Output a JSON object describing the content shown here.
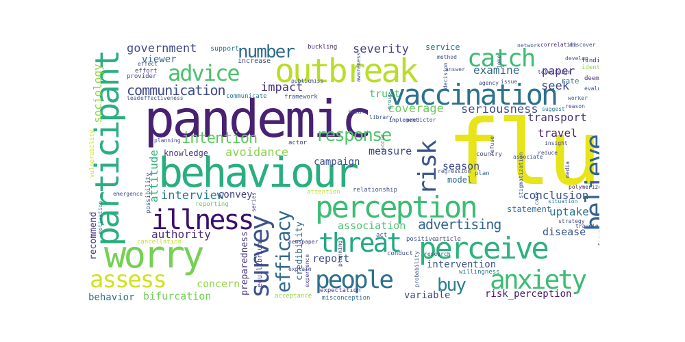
{
  "cloud": {
    "words": [
      {
        "text": "flu",
        "color": "#e7e419"
      },
      {
        "text": "pandemic",
        "color": "#482173"
      },
      {
        "text": "behaviour",
        "color": "#29af7f"
      },
      {
        "text": "outbreak",
        "color": "#b8de29"
      },
      {
        "text": "vaccination",
        "color": "#2c728e"
      },
      {
        "text": "perception",
        "color": "#3dbc74"
      },
      {
        "text": "worry",
        "color": "#75d054"
      },
      {
        "text": "participant",
        "color": "#29af7f"
      },
      {
        "text": "perceive",
        "color": "#2db27d"
      },
      {
        "text": "illness",
        "color": "#3b0f70"
      },
      {
        "text": "advice",
        "color": "#4ac16d"
      },
      {
        "text": "catch",
        "color": "#3dbc74"
      },
      {
        "text": "survey",
        "color": "#3b528b"
      },
      {
        "text": "threat",
        "color": "#22a884"
      },
      {
        "text": "anxiety",
        "color": "#3dbc74"
      },
      {
        "text": "people",
        "color": "#2c728e"
      },
      {
        "text": "believe",
        "color": "#33638d"
      },
      {
        "text": "assess",
        "color": "#d2e21b"
      },
      {
        "text": "risk",
        "color": "#39568c"
      },
      {
        "text": "efficacy",
        "color": "#31688e"
      },
      {
        "text": "response",
        "color": "#52c569"
      },
      {
        "text": "number",
        "color": "#2f6c8e"
      },
      {
        "text": "communication",
        "color": "#3e4989"
      },
      {
        "text": "intention",
        "color": "#60ca60"
      },
      {
        "text": "government",
        "color": "#3e4a89"
      },
      {
        "text": "buy",
        "color": "#287d8e"
      },
      {
        "text": "severity",
        "color": "#424086"
      },
      {
        "text": "impact",
        "color": "#463480"
      },
      {
        "text": "advertising",
        "color": "#32658e"
      },
      {
        "text": "authority",
        "color": "#482878"
      },
      {
        "text": "seriousness",
        "color": "#3e4a89"
      },
      {
        "text": "coverage",
        "color": "#6ccd5a"
      },
      {
        "text": "avoidance",
        "color": "#86d549"
      },
      {
        "text": "interview",
        "color": "#2a788e"
      },
      {
        "text": "conclusion",
        "color": "#3b528b"
      },
      {
        "text": "attitude",
        "color": "#2db27d"
      },
      {
        "text": "sociology",
        "color": "#93d741"
      },
      {
        "text": "paper",
        "color": "#472d7b"
      },
      {
        "text": "examine",
        "color": "#31688e"
      },
      {
        "text": "seek",
        "color": "#3f4788"
      },
      {
        "text": "transport",
        "color": "#46337f"
      },
      {
        "text": "travel",
        "color": "#481f71"
      },
      {
        "text": "uptake",
        "color": "#2d718e"
      },
      {
        "text": "association",
        "color": "#4ac16d"
      },
      {
        "text": "report",
        "color": "#3b528b"
      },
      {
        "text": "intervention",
        "color": "#3b528b"
      },
      {
        "text": "concern",
        "color": "#8fd744"
      },
      {
        "text": "behavior",
        "color": "#2e6f8e"
      },
      {
        "text": "bifurcation",
        "color": "#73d056"
      },
      {
        "text": "risk_perception",
        "color": "#48186a"
      },
      {
        "text": "variable",
        "color": "#3f4788"
      },
      {
        "text": "disease",
        "color": "#39568c"
      },
      {
        "text": "recommend",
        "color": "#46337f"
      },
      {
        "text": "preparedness",
        "color": "#46337f"
      },
      {
        "text": "knowledge",
        "color": "#453882"
      },
      {
        "text": "convey",
        "color": "#433e85"
      },
      {
        "text": "season",
        "color": "#3e4989"
      },
      {
        "text": "statement",
        "color": "#2e6e8e"
      },
      {
        "text": "measure",
        "color": "#3f4788"
      },
      {
        "text": "campaign",
        "color": "#3b528b"
      },
      {
        "text": "trust",
        "color": "#4ac16d"
      },
      {
        "text": "credibility",
        "color": "#31688e"
      },
      {
        "text": "viewer",
        "color": "#31688e"
      },
      {
        "text": "model",
        "color": "#2d708e"
      },
      {
        "text": "service",
        "color": "#2a788e"
      },
      {
        "text": "support",
        "color": "#2a788e"
      },
      {
        "text": "increase",
        "color": "#3e4989"
      },
      {
        "text": "buckling",
        "color": "#482878"
      },
      {
        "text": "communicate",
        "color": "#2a788e"
      },
      {
        "text": "framework",
        "color": "#3b528b"
      },
      {
        "text": "effort",
        "color": "#46337f"
      },
      {
        "text": "provider",
        "color": "#3f4788"
      },
      {
        "text": "rate",
        "color": "#2a788e"
      },
      {
        "text": "deem",
        "color": "#472d7b"
      },
      {
        "text": "finding",
        "color": "#482878"
      },
      {
        "text": "identify",
        "color": "#8fd744"
      },
      {
        "text": "country",
        "color": "#3e4989"
      },
      {
        "text": "plan",
        "color": "#31688e"
      },
      {
        "text": "relationship",
        "color": "#3b528b"
      },
      {
        "text": "actor",
        "color": "#453882"
      },
      {
        "text": "reporting",
        "color": "#6ccd5a"
      },
      {
        "text": "cancellation",
        "color": "#c2df23"
      },
      {
        "text": "equilibrium",
        "color": "#453882"
      },
      {
        "text": "possibility",
        "color": "#3b528b"
      },
      {
        "text": "acceptance",
        "color": "#8fd744"
      },
      {
        "text": "expectation",
        "color": "#472d7b"
      },
      {
        "text": "misconception",
        "color": "#31688e"
      },
      {
        "text": "conduct",
        "color": "#3e4989"
      },
      {
        "text": "willingness",
        "color": "#2a788e"
      },
      {
        "text": "positive",
        "color": "#3b528b"
      },
      {
        "text": "article",
        "color": "#433e85"
      },
      {
        "text": "attention",
        "color": "#b8de29"
      },
      {
        "text": "act",
        "color": "#3e4989"
      },
      {
        "text": "vulnerability",
        "color": "#d2e21b"
      },
      {
        "text": "series",
        "color": "#453882"
      },
      {
        "text": "emergence",
        "color": "#3b528b"
      },
      {
        "text": "strategy",
        "color": "#3e4989"
      },
      {
        "text": "situation",
        "color": "#2a788e"
      },
      {
        "text": "media",
        "color": "#3e4989"
      },
      {
        "text": "lead",
        "color": "#3b528b"
      },
      {
        "text": "effectiveness",
        "color": "#3b528b"
      },
      {
        "text": "implement",
        "color": "#3e4989"
      },
      {
        "text": "refuse",
        "color": "#3b528b"
      },
      {
        "text": "polymerize",
        "color": "#482878"
      },
      {
        "text": "insight",
        "color": "#3e4989"
      },
      {
        "text": "traveler",
        "color": "#453882"
      },
      {
        "text": "focus",
        "color": "#3e4989"
      },
      {
        "text": "answer",
        "color": "#3b528b"
      },
      {
        "text": "agency",
        "color": "#3e4989"
      },
      {
        "text": "correlation",
        "color": "#482878"
      },
      {
        "text": "discover",
        "color": "#3b528b"
      },
      {
        "text": "suggest",
        "color": "#2a788e"
      },
      {
        "text": "television",
        "color": "#3b528b"
      },
      {
        "text": "explain",
        "color": "#3e4989"
      },
      {
        "text": "newspaper",
        "color": "#453882"
      },
      {
        "text": "research",
        "color": "#3b528b"
      },
      {
        "text": "group",
        "color": "#2a788e"
      },
      {
        "text": "library",
        "color": "#3b528b"
      },
      {
        "text": "speak",
        "color": "#3b528b"
      },
      {
        "text": "reduce",
        "color": "#3e4989"
      },
      {
        "text": "regression",
        "color": "#3b528b"
      },
      {
        "text": "stigmatization",
        "color": "#3b528b"
      },
      {
        "text": "motivation",
        "color": "#2a788e"
      },
      {
        "text": "experience",
        "color": "#453882"
      },
      {
        "text": "probability",
        "color": "#3b528b"
      },
      {
        "text": "planning",
        "color": "#3e4989"
      },
      {
        "text": "effect",
        "color": "#3b528b"
      },
      {
        "text": "method",
        "color": "#3e4989"
      },
      {
        "text": "develop",
        "color": "#3b528b"
      },
      {
        "text": "network",
        "color": "#3b528b"
      },
      {
        "text": "occur",
        "color": "#3b528b"
      },
      {
        "text": "awareness",
        "color": "#3b528b"
      },
      {
        "text": "decision",
        "color": "#3b528b"
      },
      {
        "text": "issue",
        "color": "#3b528b"
      },
      {
        "text": "miss",
        "color": "#3e4989"
      },
      {
        "text": "public",
        "color": "#3b528b"
      },
      {
        "text": "joke",
        "color": "#3b528b"
      },
      {
        "text": "evaluate",
        "color": "#3b528b"
      },
      {
        "text": "associate",
        "color": "#3b528b"
      },
      {
        "text": "care",
        "color": "#3b528b"
      },
      {
        "text": "worker",
        "color": "#3b528b"
      },
      {
        "text": "reason",
        "color": "#3b528b"
      },
      {
        "text": "predictor",
        "color": "#3b528b"
      },
      {
        "text": "use",
        "color": "#3b528b"
      }
    ]
  }
}
